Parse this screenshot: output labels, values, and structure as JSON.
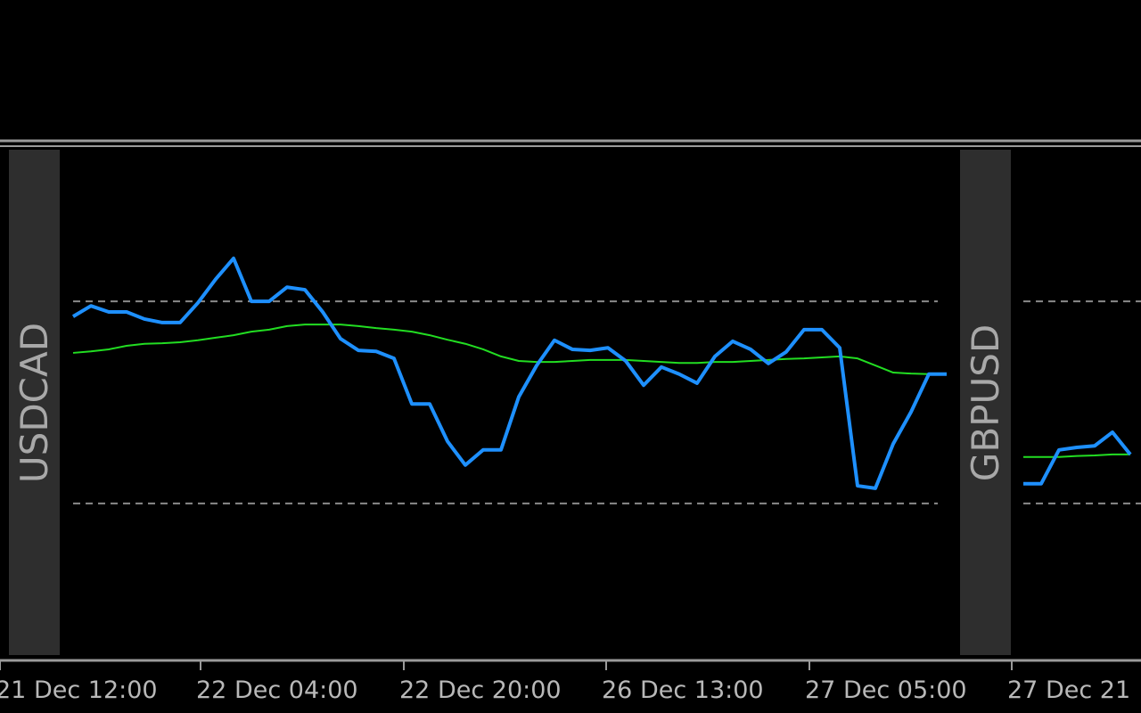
{
  "chart_data": [
    {
      "type": "line",
      "title": "USDCAD",
      "ylim": [
        0,
        100
      ],
      "levels": [
        70,
        30
      ],
      "series": [
        {
          "color": "#1e90ff",
          "values": [
            67.0,
            69.1,
            67.9,
            67.9,
            66.5,
            65.8,
            65.8,
            69.7,
            74.4,
            78.5,
            70.0,
            70.0,
            72.8,
            72.3,
            67.9,
            62.6,
            60.3,
            60.1,
            58.7,
            49.7,
            49.7,
            42.3,
            37.6,
            40.6,
            40.6,
            51.1,
            57.3,
            62.3,
            60.5,
            60.3,
            60.8,
            58.2,
            53.4,
            57.0,
            55.6,
            53.8,
            59.1,
            62.1,
            60.5,
            57.7,
            60.0,
            64.4,
            64.4,
            60.8,
            33.5,
            33.0,
            41.8,
            48.1,
            55.6,
            55.6
          ]
        },
        {
          "color": "#22dd22",
          "values": [
            59.8,
            60.1,
            60.5,
            61.2,
            61.6,
            61.7,
            61.9,
            62.3,
            62.8,
            63.3,
            64.0,
            64.4,
            65.1,
            65.4,
            65.4,
            65.4,
            65.1,
            64.7,
            64.4,
            64.0,
            63.3,
            62.4,
            61.6,
            60.5,
            59.1,
            58.2,
            58.0,
            58.0,
            58.2,
            58.4,
            58.4,
            58.4,
            58.2,
            58.0,
            57.8,
            57.8,
            58.0,
            58.0,
            58.2,
            58.4,
            58.6,
            58.7,
            58.9,
            59.1,
            58.7,
            57.3,
            55.9,
            55.7,
            55.6,
            55.6
          ]
        }
      ]
    },
    {
      "type": "line",
      "title": "GBPUSD",
      "ylim": [
        0,
        100
      ],
      "levels": [
        70,
        30
      ],
      "series": [
        {
          "color": "#1e90ff",
          "values": [
            33.9,
            33.9,
            40.6,
            41.1,
            41.4,
            44.1,
            39.7
          ]
        },
        {
          "color": "#22dd22",
          "values": [
            39.2,
            39.2,
            39.2,
            39.4,
            39.5,
            39.7,
            39.7
          ]
        }
      ]
    }
  ],
  "x_axis_labels": [
    "21 Dec 12:00",
    "22 Dec 04:00",
    "22 Dec 20:00",
    "26 Dec 13:00",
    "27 Dec 05:00",
    "27 Dec 21"
  ]
}
